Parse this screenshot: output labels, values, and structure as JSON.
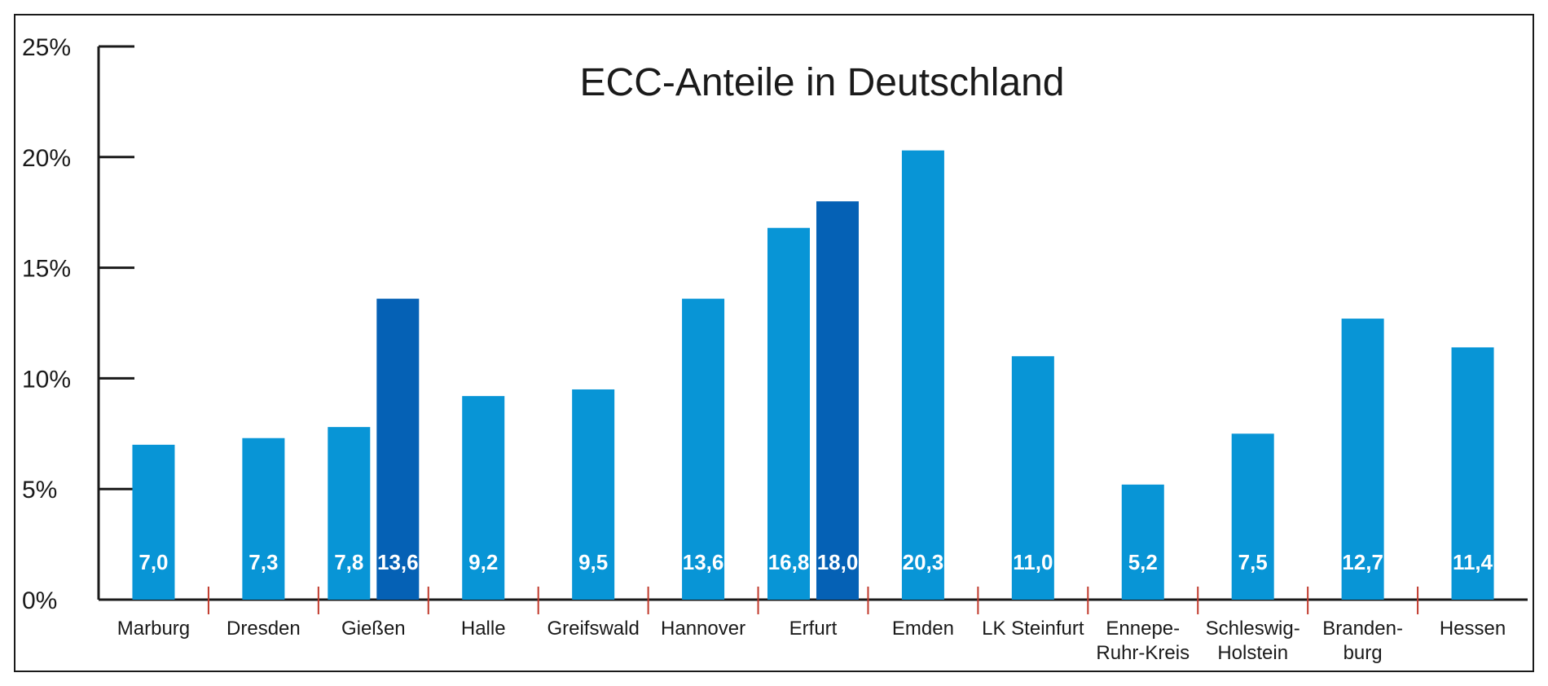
{
  "chart_data": {
    "type": "bar",
    "title": "ECC-Anteile in Deutschland",
    "xlabel": "",
    "ylabel": "",
    "ylim": [
      0,
      25
    ],
    "yticks": [
      "0%",
      "5%",
      "10%",
      "15%",
      "20%",
      "25%"
    ],
    "grid": false,
    "legend": "none",
    "colors": {
      "primary": "#0895D6",
      "highlight": "#0561B5",
      "tick_marks": "#C0392B"
    },
    "categories": [
      [
        "Marburg"
      ],
      [
        "Dresden"
      ],
      [
        "Gießen"
      ],
      [
        "Halle"
      ],
      [
        "Greifswald"
      ],
      [
        "Hannover"
      ],
      [
        "Erfurt"
      ],
      [
        "Emden"
      ],
      [
        "LK Steinfurt"
      ],
      [
        "Ennepe-",
        "Ruhr-Kreis"
      ],
      [
        "Schleswig-",
        "Holstein"
      ],
      [
        "Branden-",
        "burg"
      ],
      [
        "Hessen"
      ]
    ],
    "bars": [
      {
        "category": 0,
        "value": 7.0,
        "label": "7,0",
        "highlight": false
      },
      {
        "category": 1,
        "value": 7.3,
        "label": "7,3",
        "highlight": false
      },
      {
        "category": 2,
        "value": 7.8,
        "label": "7,8",
        "highlight": false
      },
      {
        "category": 2,
        "value": 13.6,
        "label": "13,6",
        "highlight": true
      },
      {
        "category": 3,
        "value": 9.2,
        "label": "9,2",
        "highlight": false
      },
      {
        "category": 4,
        "value": 9.5,
        "label": "9,5",
        "highlight": false
      },
      {
        "category": 5,
        "value": 13.6,
        "label": "13,6",
        "highlight": false
      },
      {
        "category": 6,
        "value": 16.8,
        "label": "16,8",
        "highlight": false
      },
      {
        "category": 6,
        "value": 18.0,
        "label": "18,0",
        "highlight": true
      },
      {
        "category": 7,
        "value": 20.3,
        "label": "20,3",
        "highlight": false
      },
      {
        "category": 8,
        "value": 11.0,
        "label": "11,0",
        "highlight": false
      },
      {
        "category": 9,
        "value": 5.2,
        "label": "5,2",
        "highlight": false
      },
      {
        "category": 10,
        "value": 7.5,
        "label": "7,5",
        "highlight": false
      },
      {
        "category": 11,
        "value": 12.7,
        "label": "12,7",
        "highlight": false
      },
      {
        "category": 12,
        "value": 11.4,
        "label": "11,4",
        "highlight": false
      }
    ]
  }
}
